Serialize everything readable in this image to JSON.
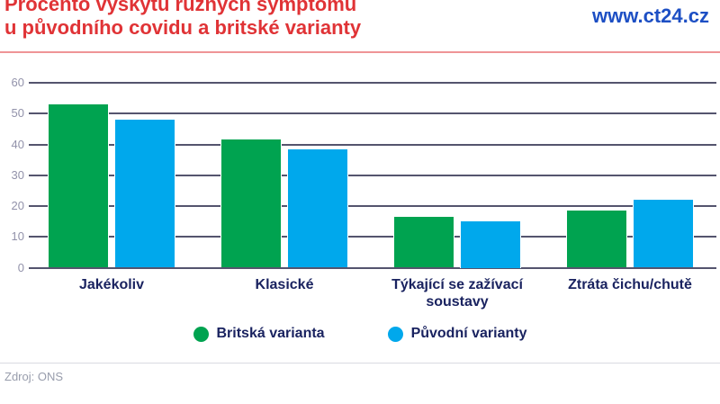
{
  "header": {
    "title_line1": "Procento výskytu různých symptomů",
    "title_line2": "u původního covidu a britské varianty",
    "site": "www.ct24.cz"
  },
  "chart_data": {
    "type": "bar",
    "title": "Procento výskytu různých symptomů u původního covidu a britské varianty",
    "categories": [
      "Jakékoliv",
      "Klasické",
      "Týkající se zažívací soustavy",
      "Ztráta čichu/chutě"
    ],
    "series": [
      {
        "name": "Britská varianta",
        "color": "#00a350",
        "values": [
          53,
          41.5,
          16.5,
          18.5
        ]
      },
      {
        "name": "Původní varianty",
        "color": "#00a8ec",
        "values": [
          48,
          38.5,
          15,
          22
        ]
      }
    ],
    "xlabel": "",
    "ylabel": "",
    "ylim": [
      0,
      60
    ],
    "yticks": [
      0,
      10,
      20,
      30,
      40,
      50,
      60
    ],
    "grid": true,
    "legend_position": "bottom"
  },
  "footer": {
    "source": "Zdroj: ONS"
  },
  "colors": {
    "title": "#e03336",
    "site_link": "#1d4fc4",
    "title_rule": "#ef9496",
    "gridline": "#54546e",
    "tick_label": "#9292aa",
    "category_label": "#1a2360",
    "legend_label": "#1a2360",
    "footer_rule": "#d9dae1",
    "footer_text": "#989dac"
  }
}
